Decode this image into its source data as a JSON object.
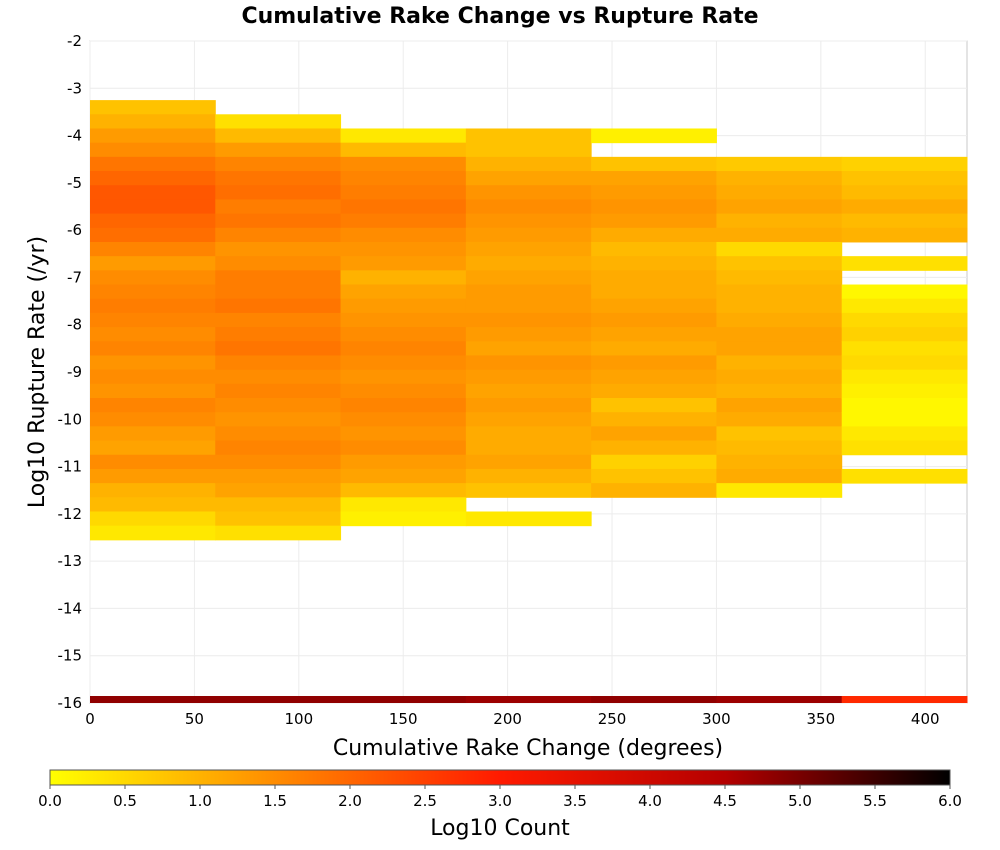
{
  "chart_data": {
    "type": "heatmap",
    "title": "Cumulative Rake Change vs Rupture Rate",
    "xlabel": "Cumulative Rake Change (degrees)",
    "ylabel": "Log10 Rupture Rate (/yr)",
    "xlim": [
      0,
      420
    ],
    "ylim": [
      -16,
      -2
    ],
    "x_ticks": [
      "0",
      "50",
      "100",
      "150",
      "200",
      "250",
      "300",
      "350",
      "400"
    ],
    "y_ticks": [
      "-2",
      "-3",
      "-4",
      "-5",
      "-6",
      "-7",
      "-8",
      "-9",
      "-10",
      "-11",
      "-12",
      "-13",
      "-14",
      "-15",
      "-16"
    ],
    "grid": true,
    "x_bin_width": 60,
    "y_bin_width": 0.3,
    "colorbar": {
      "label": "Log10 Count",
      "min": 0.0,
      "max": 6.0,
      "ticks": [
        "0.0",
        "0.5",
        "1.0",
        "1.5",
        "2.0",
        "2.5",
        "3.0",
        "3.5",
        "4.0",
        "4.5",
        "5.0",
        "5.5",
        "6.0"
      ],
      "colors": [
        "#ffff00",
        "#ff8c00",
        "#ff1a00",
        "#b40000",
        "#000000"
      ]
    },
    "cells": [
      {
        "x": 0,
        "values": [
          [
            -3.4,
            0.8
          ],
          [
            -3.7,
            1.0
          ],
          [
            -4.0,
            1.3
          ],
          [
            -4.3,
            1.5
          ],
          [
            -4.6,
            1.8
          ],
          [
            -4.9,
            2.0
          ],
          [
            -5.2,
            2.2
          ],
          [
            -5.5,
            2.2
          ],
          [
            -5.8,
            2.0
          ],
          [
            -6.1,
            1.9
          ],
          [
            -6.4,
            1.6
          ],
          [
            -6.7,
            1.3
          ],
          [
            -7.0,
            1.5
          ],
          [
            -7.3,
            1.6
          ],
          [
            -7.6,
            1.7
          ],
          [
            -7.9,
            1.6
          ],
          [
            -8.2,
            1.5
          ],
          [
            -8.5,
            1.6
          ],
          [
            -8.8,
            1.4
          ],
          [
            -9.1,
            1.5
          ],
          [
            -9.4,
            1.4
          ],
          [
            -9.7,
            1.6
          ],
          [
            -10.0,
            1.5
          ],
          [
            -10.3,
            1.3
          ],
          [
            -10.6,
            1.2
          ],
          [
            -10.9,
            1.5
          ],
          [
            -11.2,
            1.3
          ],
          [
            -11.5,
            1.0
          ],
          [
            -11.8,
            0.9
          ],
          [
            -12.1,
            0.5
          ],
          [
            -12.4,
            0.3
          ]
        ],
        "low_bin": 4.8
      },
      {
        "x": 60,
        "values": [
          [
            -3.7,
            0.4
          ],
          [
            -4.0,
            0.9
          ],
          [
            -4.3,
            1.3
          ],
          [
            -4.6,
            1.6
          ],
          [
            -4.9,
            1.8
          ],
          [
            -5.2,
            1.9
          ],
          [
            -5.5,
            1.7
          ],
          [
            -5.8,
            1.8
          ],
          [
            -6.1,
            1.6
          ],
          [
            -6.4,
            1.4
          ],
          [
            -6.7,
            1.5
          ],
          [
            -7.0,
            1.7
          ],
          [
            -7.3,
            1.7
          ],
          [
            -7.6,
            1.8
          ],
          [
            -7.9,
            1.6
          ],
          [
            -8.2,
            1.7
          ],
          [
            -8.5,
            1.8
          ],
          [
            -8.8,
            1.6
          ],
          [
            -9.1,
            1.5
          ],
          [
            -9.4,
            1.6
          ],
          [
            -9.7,
            1.5
          ],
          [
            -10.0,
            1.4
          ],
          [
            -10.3,
            1.5
          ],
          [
            -10.6,
            1.6
          ],
          [
            -10.9,
            1.5
          ],
          [
            -11.2,
            1.3
          ],
          [
            -11.5,
            1.2
          ],
          [
            -11.8,
            0.9
          ],
          [
            -12.1,
            0.8
          ],
          [
            -12.4,
            0.4
          ]
        ],
        "low_bin": 4.8
      },
      {
        "x": 120,
        "values": [
          [
            -4.0,
            0.3
          ],
          [
            -4.3,
            0.9
          ],
          [
            -4.6,
            1.5
          ],
          [
            -4.9,
            1.6
          ],
          [
            -5.2,
            1.7
          ],
          [
            -5.5,
            1.8
          ],
          [
            -5.8,
            1.7
          ],
          [
            -6.1,
            1.5
          ],
          [
            -6.4,
            1.4
          ],
          [
            -6.7,
            1.3
          ],
          [
            -7.0,
            1.0
          ],
          [
            -7.3,
            1.2
          ],
          [
            -7.6,
            1.3
          ],
          [
            -7.9,
            1.4
          ],
          [
            -8.2,
            1.5
          ],
          [
            -8.5,
            1.6
          ],
          [
            -8.8,
            1.5
          ],
          [
            -9.1,
            1.4
          ],
          [
            -9.4,
            1.5
          ],
          [
            -9.7,
            1.6
          ],
          [
            -10.0,
            1.5
          ],
          [
            -10.3,
            1.4
          ],
          [
            -10.6,
            1.5
          ],
          [
            -10.9,
            1.3
          ],
          [
            -11.2,
            1.2
          ],
          [
            -11.5,
            0.9
          ],
          [
            -11.8,
            0.3
          ],
          [
            -12.1,
            0.2
          ]
        ],
        "low_bin": 4.8
      },
      {
        "x": 180,
        "values": [
          [
            -4.0,
            0.8
          ],
          [
            -4.3,
            0.8
          ],
          [
            -4.6,
            1.0
          ],
          [
            -4.9,
            1.2
          ],
          [
            -5.2,
            1.4
          ],
          [
            -5.5,
            1.5
          ],
          [
            -5.8,
            1.4
          ],
          [
            -6.1,
            1.3
          ],
          [
            -6.4,
            1.2
          ],
          [
            -6.7,
            1.1
          ],
          [
            -7.0,
            1.2
          ],
          [
            -7.3,
            1.3
          ],
          [
            -7.6,
            1.3
          ],
          [
            -7.9,
            1.4
          ],
          [
            -8.2,
            1.3
          ],
          [
            -8.5,
            1.2
          ],
          [
            -8.8,
            1.4
          ],
          [
            -9.1,
            1.3
          ],
          [
            -9.4,
            1.2
          ],
          [
            -9.7,
            1.3
          ],
          [
            -10.0,
            1.2
          ],
          [
            -10.3,
            1.1
          ],
          [
            -10.6,
            1.1
          ],
          [
            -10.9,
            1.2
          ],
          [
            -11.2,
            1.0
          ],
          [
            -11.5,
            0.8
          ],
          [
            -12.1,
            0.3
          ]
        ],
        "low_bin": 4.7
      },
      {
        "x": 240,
        "values": [
          [
            -4.0,
            0.2
          ],
          [
            -4.6,
            0.8
          ],
          [
            -4.9,
            1.2
          ],
          [
            -5.2,
            1.3
          ],
          [
            -5.5,
            1.4
          ],
          [
            -5.8,
            1.3
          ],
          [
            -6.1,
            1.1
          ],
          [
            -6.4,
            0.9
          ],
          [
            -6.7,
            1.0
          ],
          [
            -7.0,
            1.1
          ],
          [
            -7.3,
            1.1
          ],
          [
            -7.6,
            1.2
          ],
          [
            -7.9,
            1.3
          ],
          [
            -8.2,
            1.2
          ],
          [
            -8.5,
            1.1
          ],
          [
            -8.8,
            1.3
          ],
          [
            -9.1,
            1.2
          ],
          [
            -9.4,
            1.1
          ],
          [
            -9.7,
            0.8
          ],
          [
            -10.0,
            1.0
          ],
          [
            -10.3,
            1.2
          ],
          [
            -10.6,
            1.0
          ],
          [
            -10.9,
            0.6
          ],
          [
            -11.2,
            0.8
          ],
          [
            -11.5,
            1.0
          ]
        ],
        "low_bin": 4.8
      },
      {
        "x": 300,
        "values": [
          [
            -4.6,
            0.7
          ],
          [
            -4.9,
            1.0
          ],
          [
            -5.2,
            1.1
          ],
          [
            -5.5,
            1.2
          ],
          [
            -5.8,
            1.0
          ],
          [
            -6.1,
            1.1
          ],
          [
            -6.4,
            0.5
          ],
          [
            -6.7,
            0.8
          ],
          [
            -7.0,
            0.9
          ],
          [
            -7.3,
            1.0
          ],
          [
            -7.6,
            1.0
          ],
          [
            -7.9,
            1.1
          ],
          [
            -8.2,
            1.2
          ],
          [
            -8.5,
            1.2
          ],
          [
            -8.8,
            1.0
          ],
          [
            -9.1,
            1.1
          ],
          [
            -9.4,
            1.0
          ],
          [
            -9.7,
            1.2
          ],
          [
            -10.0,
            1.1
          ],
          [
            -10.3,
            0.8
          ],
          [
            -10.6,
            0.9
          ],
          [
            -10.9,
            1.0
          ],
          [
            -11.2,
            1.1
          ],
          [
            -11.5,
            0.3
          ]
        ],
        "low_bin": 4.7
      },
      {
        "x": 360,
        "values": [
          [
            -4.6,
            0.6
          ],
          [
            -4.9,
            0.8
          ],
          [
            -5.2,
            0.9
          ],
          [
            -5.5,
            1.1
          ],
          [
            -5.8,
            0.9
          ],
          [
            -6.1,
            1.0
          ],
          [
            -6.7,
            0.4
          ],
          [
            -7.3,
            0.1
          ],
          [
            -7.6,
            0.3
          ],
          [
            -7.9,
            0.5
          ],
          [
            -8.2,
            0.6
          ],
          [
            -8.5,
            0.4
          ],
          [
            -8.8,
            0.5
          ],
          [
            -9.1,
            0.3
          ],
          [
            -9.4,
            0.2
          ],
          [
            -9.7,
            0.1
          ],
          [
            -10.0,
            0.1
          ],
          [
            -10.3,
            0.3
          ],
          [
            -10.6,
            0.4
          ],
          [
            -11.2,
            0.4
          ]
        ],
        "low_bin": 2.8
      }
    ]
  }
}
